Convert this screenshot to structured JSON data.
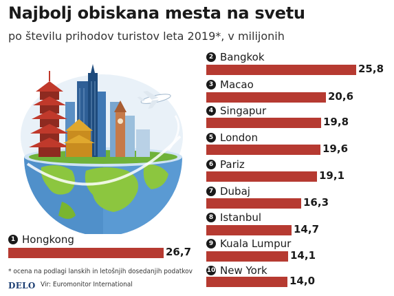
{
  "title": "Najbolj obiskana mesta na svetu",
  "subtitle": "po številu prihodov turistov leta 2019*, v milijonih",
  "chart_data": {
    "type": "bar",
    "orientation": "horizontal",
    "title": "Najbolj obiskana mesta na svetu",
    "subtitle": "po številu prihodov turistov leta 2019*, v milijonih",
    "categories": [
      "Hongkong",
      "Bangkok",
      "Macao",
      "Singapur",
      "London",
      "Pariz",
      "Dubaj",
      "Istanbul",
      "Kuala Lumpur",
      "New York"
    ],
    "ranks": [
      "1",
      "2",
      "3",
      "4",
      "5",
      "6",
      "7",
      "8",
      "9",
      "10"
    ],
    "values": [
      26.7,
      25.8,
      20.6,
      19.8,
      19.6,
      19.1,
      16.3,
      14.7,
      14.1,
      14.0
    ],
    "value_labels": [
      "26,7",
      "25,8",
      "20,6",
      "19,8",
      "19,6",
      "19,1",
      "16,3",
      "14,7",
      "14,1",
      "14,0"
    ],
    "grid": false,
    "bar_color": "#b63a31"
  },
  "footnote": "* ocena na podlagi lanskih in letošnjih dosedanjih podatkov",
  "logo": "DELO",
  "source": "Vir: Euromonitor International"
}
